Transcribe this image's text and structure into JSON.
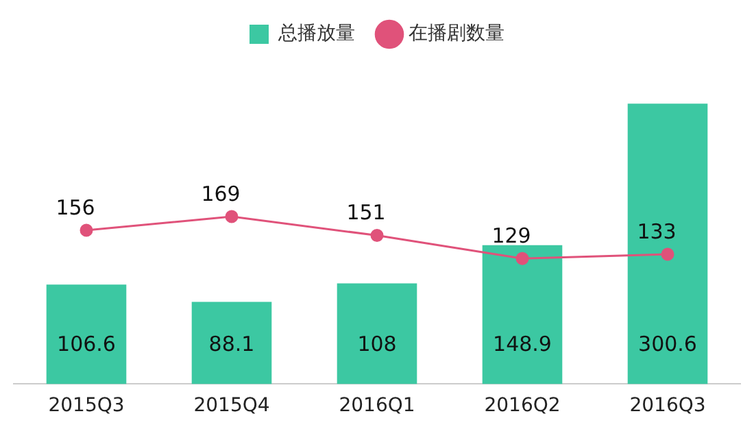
{
  "chart_data": {
    "type": "bar",
    "categories": [
      "2015Q3",
      "2015Q4",
      "2016Q1",
      "2016Q2",
      "2016Q3"
    ],
    "series": [
      {
        "name": "总播放量",
        "color": "#3cc8a2",
        "values": [
          106.6,
          88.1,
          108,
          148.9,
          300.6
        ]
      },
      {
        "name": "在播剧数量",
        "type": "line",
        "axis": "y2",
        "color": "#e0527a",
        "values": [
          156,
          169,
          151,
          129,
          133
        ]
      }
    ],
    "data_labels": true,
    "legend": "top",
    "marker": "circle",
    "grid": false,
    "tick_labels": "x"
  }
}
